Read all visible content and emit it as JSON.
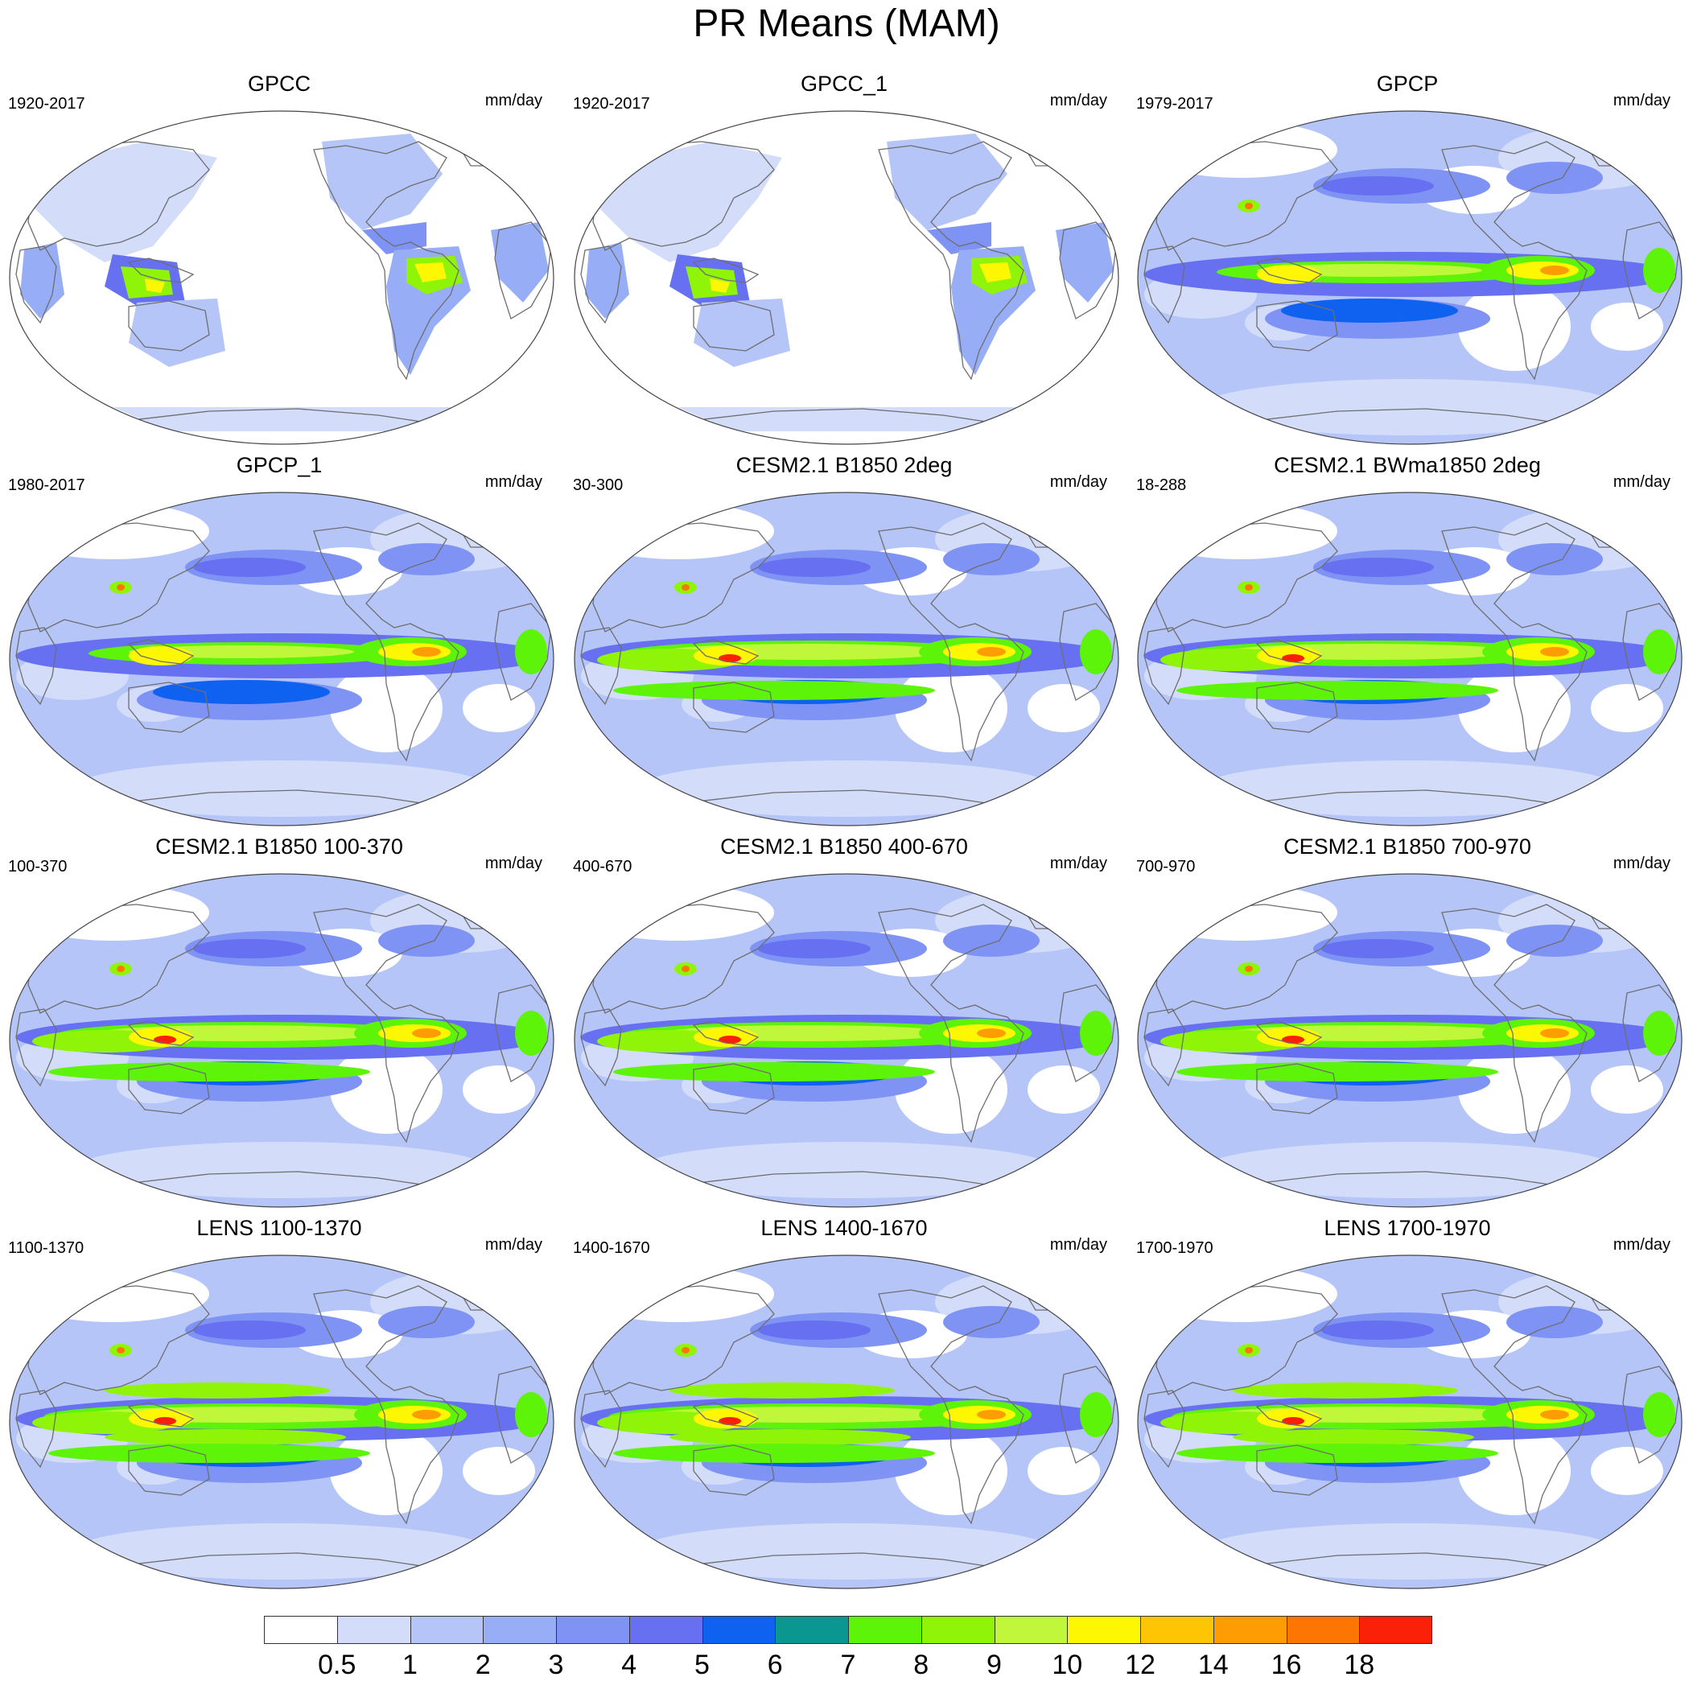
{
  "title": "PR Means (MAM)",
  "units": "mm/day",
  "panels": [
    {
      "title": "GPCC",
      "years": "1920-2017",
      "style": "land"
    },
    {
      "title": "GPCC_1",
      "years": "1920-2017",
      "style": "land"
    },
    {
      "title": "GPCP",
      "years": "1979-2017",
      "style": "obs"
    },
    {
      "title": "GPCP_1",
      "years": "1980-2017",
      "style": "obs"
    },
    {
      "title": "CESM2.1 B1850 2deg",
      "years": "30-300",
      "style": "model"
    },
    {
      "title": "CESM2.1 BWma1850 2deg",
      "years": "18-288",
      "style": "model"
    },
    {
      "title": "CESM2.1 B1850 100-370",
      "years": "100-370",
      "style": "model"
    },
    {
      "title": "CESM2.1 B1850 400-670",
      "years": "400-670",
      "style": "model"
    },
    {
      "title": "CESM2.1 B1850 700-970",
      "years": "700-970",
      "style": "model"
    },
    {
      "title": "LENS 1100-1370",
      "years": "1100-1370",
      "style": "lens"
    },
    {
      "title": "LENS 1400-1670",
      "years": "1400-1670",
      "style": "lens"
    },
    {
      "title": "LENS 1700-1970",
      "years": "1700-1970",
      "style": "lens"
    }
  ],
  "colorbar": {
    "labels": [
      "0.5",
      "1",
      "2",
      "3",
      "4",
      "5",
      "6",
      "7",
      "8",
      "9",
      "10",
      "12",
      "14",
      "16",
      "18"
    ],
    "colors": [
      "#ffffff",
      "#d3ddfa",
      "#b6c5f8",
      "#97adf6",
      "#7e93f4",
      "#6670f0",
      "#0f62f0",
      "#0a9691",
      "#5ef40a",
      "#90f409",
      "#c1f73b",
      "#fdf703",
      "#fdc503",
      "#fd9d03",
      "#fd7604",
      "#fb2008"
    ]
  }
}
